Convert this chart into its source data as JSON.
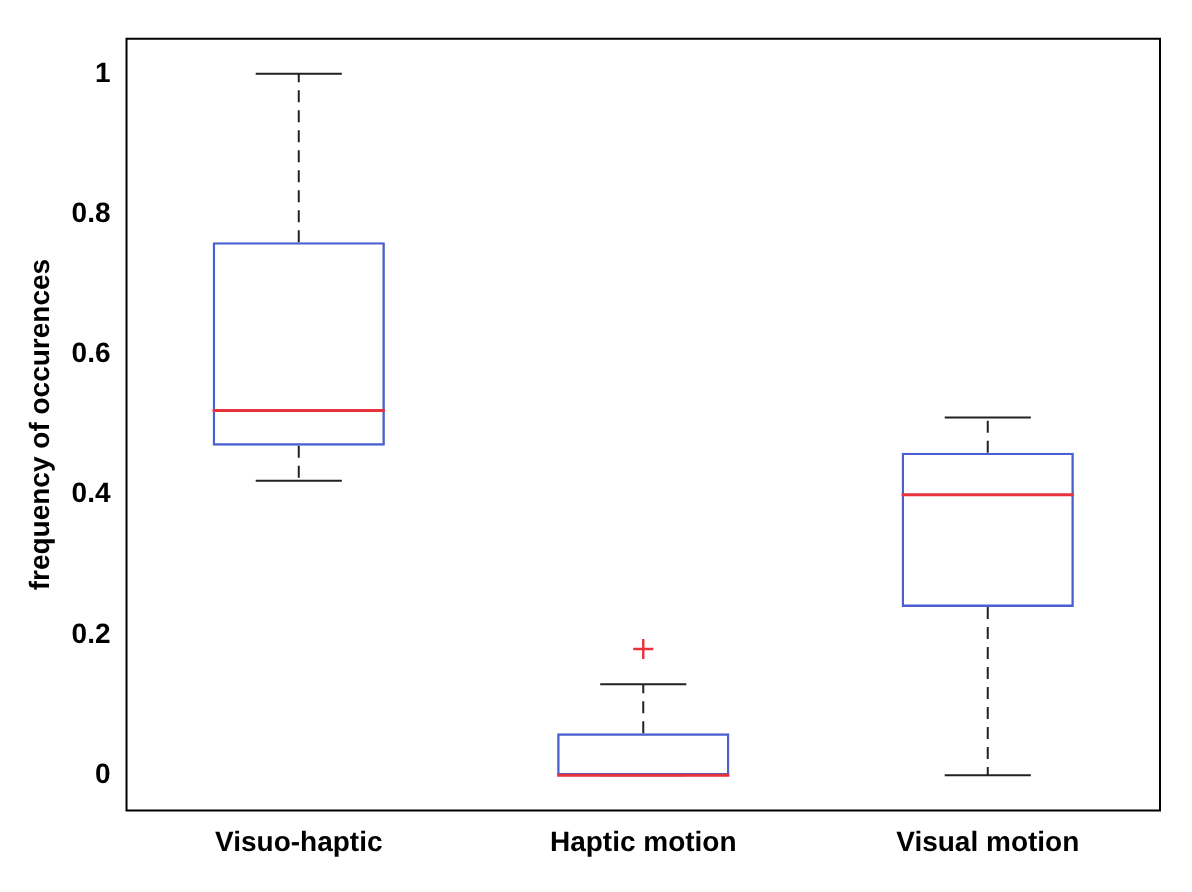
{
  "chart_data": {
    "type": "box",
    "ylabel": "frequency of occurences",
    "categories": [
      "Visuo-haptic",
      "Haptic motion",
      "Visual motion"
    ],
    "boxes": [
      {
        "low": 0.42,
        "q1": 0.47,
        "median": 0.52,
        "q3": 0.76,
        "high": 1.0
      },
      {
        "low": 0,
        "q1": 0,
        "median": 0,
        "q3": 0.06,
        "high": 0.13,
        "outliers": [
          0.18
        ]
      },
      {
        "low": 0,
        "q1": 0.24,
        "median": 0.4,
        "q3": 0.46,
        "high": 0.51
      }
    ],
    "color": "#4a5fd0",
    "ylim": [
      -0.05,
      1.05
    ],
    "yticks": [
      0,
      0.2,
      0.4,
      0.6,
      0.8,
      1
    ],
    "grid": false,
    "legend": false
  }
}
